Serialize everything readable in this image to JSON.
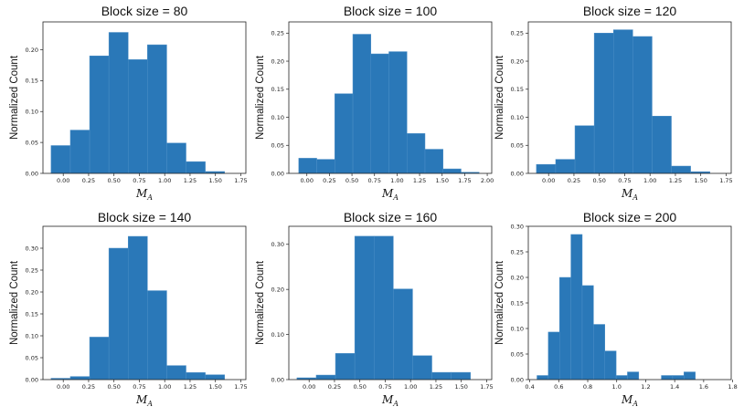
{
  "chart_data": [
    {
      "type": "bar",
      "title": "Block size = 80",
      "xlabel": "M",
      "xlabel_sub": "A",
      "ylabel": "Normalized Count",
      "xlim": [
        -0.2,
        1.8
      ],
      "ylim": [
        0,
        0.245
      ],
      "xticks": [
        0.0,
        0.25,
        0.5,
        0.75,
        1.0,
        1.25,
        1.5,
        1.75
      ],
      "xtick_labels": [
        "0.00",
        "0.25",
        "0.50",
        "0.75",
        "1.00",
        "1.25",
        "1.50",
        "1.75"
      ],
      "yticks": [
        0.0,
        0.05,
        0.1,
        0.15,
        0.2
      ],
      "ytick_labels": [
        "0.00",
        "0.05",
        "0.10",
        "0.15",
        "0.20"
      ],
      "bin_edges": [
        -0.12,
        0.07,
        0.26,
        0.45,
        0.64,
        0.83,
        1.02,
        1.21,
        1.4,
        1.59
      ],
      "values": [
        0.045,
        0.07,
        0.19,
        0.228,
        0.184,
        0.208,
        0.049,
        0.019,
        0.003
      ]
    },
    {
      "type": "bar",
      "title": "Block size = 100",
      "xlabel": "M",
      "xlabel_sub": "A",
      "ylabel": "Normalized Count",
      "xlim": [
        -0.2,
        2.05
      ],
      "ylim": [
        0,
        0.27
      ],
      "xticks": [
        0.0,
        0.25,
        0.5,
        0.75,
        1.0,
        1.25,
        1.5,
        1.75,
        2.0
      ],
      "xtick_labels": [
        "0.00",
        "0.25",
        "0.50",
        "0.75",
        "1.00",
        "1.25",
        "1.50",
        "1.75",
        "2.00"
      ],
      "yticks": [
        0.0,
        0.05,
        0.1,
        0.15,
        0.2,
        0.25
      ],
      "ytick_labels": [
        "0.00",
        "0.05",
        "0.10",
        "0.15",
        "0.20",
        "0.25"
      ],
      "bin_edges": [
        -0.09,
        0.11,
        0.31,
        0.51,
        0.71,
        0.91,
        1.11,
        1.31,
        1.51,
        1.71,
        1.91
      ],
      "values": [
        0.027,
        0.025,
        0.142,
        0.248,
        0.213,
        0.217,
        0.071,
        0.043,
        0.008,
        0.002
      ]
    },
    {
      "type": "bar",
      "title": "Block size = 120",
      "xlabel": "M",
      "xlabel_sub": "A",
      "ylabel": "Normalized Count",
      "xlim": [
        -0.2,
        1.8
      ],
      "ylim": [
        0,
        0.27
      ],
      "xticks": [
        0.0,
        0.25,
        0.5,
        0.75,
        1.0,
        1.25,
        1.5,
        1.75
      ],
      "xtick_labels": [
        "0.00",
        "0.25",
        "0.50",
        "0.75",
        "1.00",
        "1.25",
        "1.50",
        "1.75"
      ],
      "yticks": [
        0.0,
        0.05,
        0.1,
        0.15,
        0.2,
        0.25
      ],
      "ytick_labels": [
        "0.00",
        "0.05",
        "0.10",
        "0.15",
        "0.20",
        "0.25"
      ],
      "bin_edges": [
        -0.12,
        0.07,
        0.26,
        0.45,
        0.64,
        0.83,
        1.02,
        1.21,
        1.4,
        1.59
      ],
      "values": [
        0.016,
        0.025,
        0.085,
        0.25,
        0.256,
        0.244,
        0.102,
        0.013,
        0.003
      ]
    },
    {
      "type": "bar",
      "title": "Block size = 140",
      "xlabel": "M",
      "xlabel_sub": "A",
      "ylabel": "Normalized Count",
      "xlim": [
        -0.2,
        1.8
      ],
      "ylim": [
        0,
        0.35
      ],
      "xticks": [
        0.0,
        0.25,
        0.5,
        0.75,
        1.0,
        1.25,
        1.5,
        1.75
      ],
      "xtick_labels": [
        "0.00",
        "0.25",
        "0.50",
        "0.75",
        "1.00",
        "1.25",
        "1.50",
        "1.75"
      ],
      "yticks": [
        0.0,
        0.05,
        0.1,
        0.15,
        0.2,
        0.25,
        0.3
      ],
      "ytick_labels": [
        "0.00",
        "0.05",
        "0.10",
        "0.15",
        "0.20",
        "0.25",
        "0.30"
      ],
      "bin_edges": [
        -0.12,
        0.07,
        0.26,
        0.45,
        0.64,
        0.83,
        1.02,
        1.21,
        1.4,
        1.59
      ],
      "values": [
        0.003,
        0.007,
        0.097,
        0.3,
        0.327,
        0.203,
        0.032,
        0.016,
        0.011
      ]
    },
    {
      "type": "bar",
      "title": "Block size = 160",
      "xlabel": "M",
      "xlabel_sub": "A",
      "ylabel": "Normalized Count",
      "xlim": [
        -0.2,
        1.8
      ],
      "ylim": [
        0,
        0.34
      ],
      "xticks": [
        0.0,
        0.25,
        0.5,
        0.75,
        1.0,
        1.25,
        1.5,
        1.75
      ],
      "xtick_labels": [
        "0.00",
        "0.25",
        "0.50",
        "0.75",
        "1.00",
        "1.25",
        "1.50",
        "1.75"
      ],
      "yticks": [
        0.0,
        0.1,
        0.2,
        0.3
      ],
      "ytick_labels": [
        "0.00",
        "0.10",
        "0.20",
        "0.30"
      ],
      "bin_edges": [
        -0.12,
        0.07,
        0.26,
        0.45,
        0.64,
        0.83,
        1.02,
        1.21,
        1.4,
        1.59
      ],
      "values": [
        0.004,
        0.01,
        0.058,
        0.318,
        0.318,
        0.201,
        0.053,
        0.016,
        0.016
      ]
    },
    {
      "type": "bar",
      "title": "Block size = 200",
      "xlabel": "M",
      "xlabel_sub": "A",
      "ylabel": "Normalized Count",
      "xlim": [
        0.39,
        1.79
      ],
      "ylim": [
        0,
        0.3
      ],
      "xticks": [
        0.4,
        0.6,
        0.8,
        1.0,
        1.2,
        1.4,
        1.6,
        1.8
      ],
      "xtick_labels": [
        "0.4",
        "0.6",
        "0.8",
        "1.0",
        "1.2",
        "1.4",
        "1.6",
        "1.8"
      ],
      "yticks": [
        0.0,
        0.05,
        0.1,
        0.15,
        0.2,
        0.25,
        0.3
      ],
      "ytick_labels": [
        "0.00",
        "0.05",
        "0.10",
        "0.15",
        "0.20",
        "0.25",
        "0.30"
      ],
      "bin_edges": [
        0.45,
        0.528,
        0.606,
        0.684,
        0.762,
        0.84,
        0.918,
        0.996,
        1.074,
        1.152,
        1.23,
        1.308,
        1.386,
        1.464,
        1.542,
        1.62,
        1.7
      ],
      "values": [
        0.008,
        0.093,
        0.2,
        0.284,
        0.184,
        0.108,
        0.056,
        0.008,
        0.015,
        0.0,
        0.0,
        0.008,
        0.008,
        0.015,
        0.0,
        0.0
      ]
    }
  ]
}
